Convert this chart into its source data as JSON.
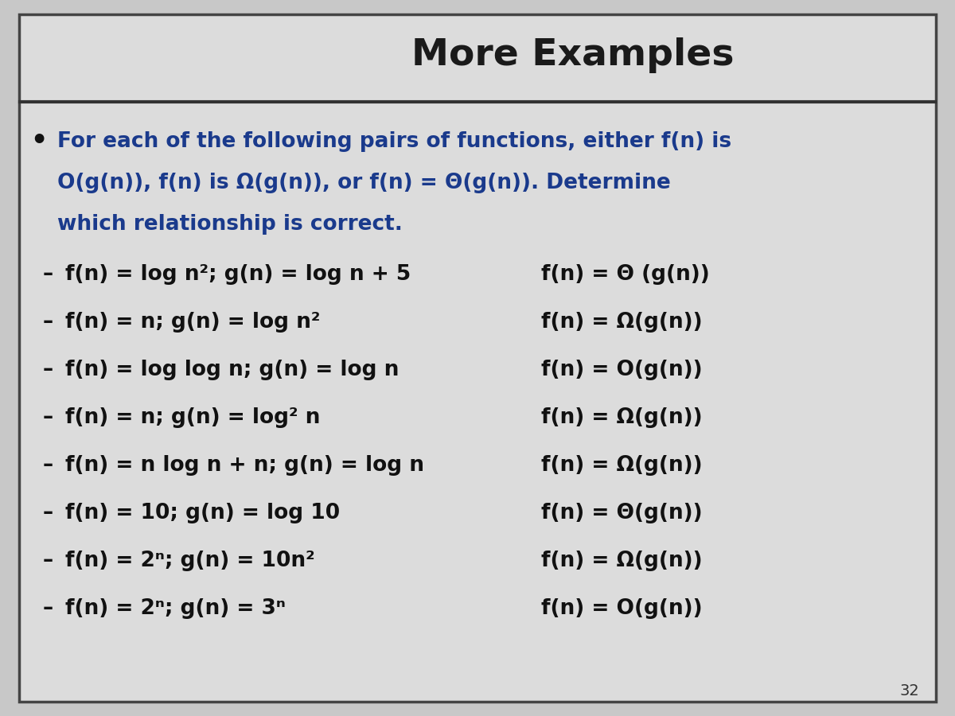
{
  "title": "More Examples",
  "bg_outer": "#c8c8c8",
  "bg_slide": "#dcdcdc",
  "border_color": "#444444",
  "title_color": "#1a1a1a",
  "intro_color": "#1a3a8c",
  "list_color": "#111111",
  "bullet_text_lines": [
    "For each of the following pairs of functions, either f(n) is",
    "O(g(n)), f(n) is Ω(g(n)), or f(n) = Θ(g(n)). Determine",
    "which relationship is correct."
  ],
  "left_items": [
    "f(n) = log n²; g(n) = log n + 5",
    "f(n) = n; g(n) = log n²",
    "f(n) = log log n; g(n) = log n",
    "f(n) = n; g(n) = log² n",
    "f(n) = n log n + n; g(n) = log n",
    "f(n) = 10; g(n) = log 10",
    "f(n) = 2ⁿ; g(n) = 10n²",
    "f(n) = 2ⁿ; g(n) = 3ⁿ"
  ],
  "right_items": [
    "f(n) = Θ (g(n))",
    "f(n) = Ω(g(n))",
    "f(n) = O(g(n))",
    "f(n) = Ω(g(n))",
    "f(n) = Ω(g(n))",
    "f(n) = Θ(g(n))",
    "f(n) = Ω(g(n))",
    "f(n) = O(g(n))"
  ],
  "page_number": "32",
  "title_fontsize": 34,
  "intro_fontsize": 19,
  "list_fontsize": 19
}
